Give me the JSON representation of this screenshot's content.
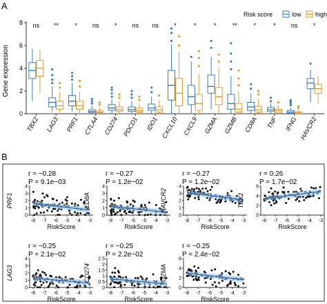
{
  "panel_a": {
    "label": "A",
    "ylabel": "Gene expression",
    "legend": {
      "title": "Risk score",
      "items": [
        {
          "name": "low",
          "color": "#3a7ec2"
        },
        {
          "name": "high",
          "color": "#eb9a2b"
        }
      ]
    },
    "ylim": [
      0,
      8
    ],
    "yticks": [
      "0",
      "2",
      "4",
      "6",
      "8"
    ]
  },
  "panel_b": {
    "label": "B",
    "xlabel": "RiskScore",
    "xticks": [
      "-8",
      "-7",
      "-6",
      "-5",
      "-4",
      "-3"
    ],
    "plots": [
      {
        "gene": "PRF1",
        "r": "r = −0.28",
        "p": "P = 9.1e−03"
      },
      {
        "gene": "CD8A",
        "r": "r = −0.27",
        "p": "P = 1.2e−02"
      },
      {
        "gene": "HAVCR2",
        "r": "r = −0.27",
        "p": "P = 1.2e−02"
      },
      {
        "gene": "TBX2",
        "r": "r = 0.26",
        "p": "P = 1.7e−02"
      },
      {
        "gene": "LAG3",
        "r": "r = −0.25",
        "p": "P = 2.1e−02"
      },
      {
        "gene": "CD274",
        "r": "r = −0.25",
        "p": "P = 2.2e−02"
      },
      {
        "gene": "GZMA",
        "r": "r = −0.25",
        "p": "P = 2.4e−02"
      }
    ]
  },
  "chart_data": [
    {
      "type": "box",
      "ylabel": "Gene expression",
      "ylim": [
        0,
        8
      ],
      "legend": {
        "title": "Risk score",
        "position": "top-right"
      },
      "categories": [
        "TBX2",
        "LAG3",
        "PRF1",
        "CTLA4",
        "CD274",
        "PDCD1",
        "IDO1",
        "CXCL10",
        "CXCL9",
        "GZMA",
        "GZMB",
        "CD8A",
        "TNF",
        "IFNG",
        "HAVCR2"
      ],
      "significance": [
        "ns",
        "**",
        "*",
        "ns",
        "*",
        "ns",
        "ns",
        "*",
        "*",
        "*",
        "**",
        "*",
        "*",
        "ns",
        "*"
      ],
      "series": [
        {
          "name": "low",
          "color": "#3a7ec2",
          "boxes": [
            {
              "min": 1.1,
              "q1": 3.1,
              "median": 3.8,
              "q3": 4.5,
              "max": 5.7,
              "outliers": []
            },
            {
              "min": 0.2,
              "q1": 0.6,
              "median": 1.0,
              "q3": 1.4,
              "max": 2.4,
              "outliers": [
                2.7,
                3.0,
                3.4,
                3.9
              ]
            },
            {
              "min": 0.2,
              "q1": 0.7,
              "median": 1.1,
              "q3": 1.6,
              "max": 2.7,
              "outliers": [
                3.0,
                3.3,
                3.6
              ]
            },
            {
              "min": 0.0,
              "q1": 0.1,
              "median": 0.2,
              "q3": 0.35,
              "max": 0.7,
              "outliers": [
                0.9,
                1.1,
                1.3
              ]
            },
            {
              "min": 0.05,
              "q1": 0.3,
              "median": 0.5,
              "q3": 0.8,
              "max": 1.3,
              "outliers": [
                1.5,
                1.8,
                2.1,
                2.3
              ]
            },
            {
              "min": 0.0,
              "q1": 0.2,
              "median": 0.35,
              "q3": 0.6,
              "max": 1.1,
              "outliers": [
                1.4,
                1.7,
                2.0
              ]
            },
            {
              "min": 0.0,
              "q1": 0.3,
              "median": 0.5,
              "q3": 0.85,
              "max": 1.5,
              "outliers": [
                1.9,
                2.3
              ]
            },
            {
              "min": 0.0,
              "q1": 1.2,
              "median": 2.5,
              "q3": 3.8,
              "max": 6.1,
              "outliers": [
                6.4,
                7.1,
                7.5
              ]
            },
            {
              "min": 0.0,
              "q1": 0.8,
              "median": 1.5,
              "q3": 2.5,
              "max": 4.6,
              "outliers": [
                5.0
              ]
            },
            {
              "min": 0.4,
              "q1": 1.8,
              "median": 2.4,
              "q3": 3.4,
              "max": 5.0,
              "outliers": [
                5.8,
                6.4
              ]
            },
            {
              "min": 0.0,
              "q1": 0.4,
              "median": 0.9,
              "q3": 1.7,
              "max": 3.3,
              "outliers": [
                3.9,
                4.6,
                5.3,
                6.2
              ]
            },
            {
              "min": 0.0,
              "q1": 0.3,
              "median": 0.6,
              "q3": 1.0,
              "max": 1.8,
              "outliers": [
                2.2,
                2.6
              ]
            },
            {
              "min": 0.0,
              "q1": 0.2,
              "median": 0.35,
              "q3": 0.55,
              "max": 0.9,
              "outliers": [
                1.1,
                1.4
              ]
            },
            {
              "min": 0.0,
              "q1": 0.05,
              "median": 0.15,
              "q3": 0.3,
              "max": 0.55,
              "outliers": [
                0.75,
                0.9,
                1.05,
                1.2
              ]
            },
            {
              "min": 1.0,
              "q1": 2.2,
              "median": 2.7,
              "q3": 3.1,
              "max": 3.9,
              "outliers": [
                4.4
              ]
            }
          ]
        },
        {
          "name": "high",
          "color": "#eb9a2b",
          "boxes": [
            {
              "min": 1.8,
              "q1": 3.3,
              "median": 4.0,
              "q3": 4.7,
              "max": 5.6,
              "outliers": []
            },
            {
              "min": 0.1,
              "q1": 0.4,
              "median": 0.7,
              "q3": 1.1,
              "max": 1.9,
              "outliers": [
                2.3,
                2.7
              ]
            },
            {
              "min": 0.1,
              "q1": 0.4,
              "median": 0.7,
              "q3": 1.1,
              "max": 1.9,
              "outliers": [
                2.4,
                2.9
              ]
            },
            {
              "min": 0.0,
              "q1": 0.1,
              "median": 0.15,
              "q3": 0.3,
              "max": 0.55,
              "outliers": [
                0.8,
                1.0
              ]
            },
            {
              "min": 0.0,
              "q1": 0.2,
              "median": 0.35,
              "q3": 0.6,
              "max": 1.1,
              "outliers": [
                1.4,
                1.7
              ]
            },
            {
              "min": 0.0,
              "q1": 0.15,
              "median": 0.3,
              "q3": 0.5,
              "max": 0.9,
              "outliers": [
                1.2,
                1.5
              ]
            },
            {
              "min": 0.0,
              "q1": 0.15,
              "median": 0.35,
              "q3": 0.6,
              "max": 1.2,
              "outliers": [
                1.6
              ]
            },
            {
              "min": 0.0,
              "q1": 0.7,
              "median": 1.8,
              "q3": 3.1,
              "max": 5.5,
              "outliers": [
                6.0,
                6.8
              ]
            },
            {
              "min": 0.0,
              "q1": 0.3,
              "median": 0.9,
              "q3": 1.7,
              "max": 3.5,
              "outliers": [
                4.2,
                4.9,
                5.5
              ]
            },
            {
              "min": 0.0,
              "q1": 0.8,
              "median": 1.5,
              "q3": 2.3,
              "max": 4.1,
              "outliers": [
                4.6,
                5.2
              ]
            },
            {
              "min": 0.0,
              "q1": 0.15,
              "median": 0.4,
              "q3": 0.9,
              "max": 2.0,
              "outliers": [
                2.5,
                3.1,
                3.8
              ]
            },
            {
              "min": 0.0,
              "q1": 0.15,
              "median": 0.35,
              "q3": 0.65,
              "max": 1.3,
              "outliers": [
                1.7,
                2.0
              ]
            },
            {
              "min": 0.0,
              "q1": 0.1,
              "median": 0.25,
              "q3": 0.4,
              "max": 0.75,
              "outliers": [
                1.0
              ]
            },
            {
              "min": 0.0,
              "q1": 0.02,
              "median": 0.08,
              "q3": 0.18,
              "max": 0.35,
              "outliers": [
                0.5,
                0.65
              ]
            },
            {
              "min": 0.9,
              "q1": 1.8,
              "median": 2.2,
              "q3": 2.6,
              "max": 3.3,
              "outliers": []
            }
          ]
        }
      ]
    },
    {
      "type": "scatter",
      "xlabel": "RiskScore",
      "xlim": [
        -8.3,
        -2.7
      ],
      "panels": [
        {
          "gene": "PRF1",
          "r": -0.28,
          "p": "9.1e-03",
          "ylim": [
            0,
            4
          ],
          "yticks": [
            0,
            1,
            2,
            3,
            4
          ],
          "fit": [
            [
              -8,
              1.6
            ],
            [
              -3,
              0.7
            ]
          ],
          "seed": 11,
          "ymean": 1.2,
          "yspread": 0.9
        },
        {
          "gene": "CD8A",
          "r": -0.27,
          "p": "1.2e-02",
          "ylim": [
            0,
            4
          ],
          "yticks": [
            0,
            1,
            2,
            3,
            4
          ],
          "fit": [
            [
              -8,
              1.2
            ],
            [
              -3,
              0.4
            ]
          ],
          "seed": 23,
          "ymean": 0.9,
          "yspread": 0.8
        },
        {
          "gene": "HAVCR2",
          "r": -0.27,
          "p": "1.2e-02",
          "ylim": [
            0,
            4
          ],
          "yticks": [
            0,
            1,
            2,
            3,
            4
          ],
          "fit": [
            [
              -8,
              3.1
            ],
            [
              -3,
              2.1
            ]
          ],
          "seed": 37,
          "ymean": 2.7,
          "yspread": 0.55
        },
        {
          "gene": "TBX2",
          "r": 0.26,
          "p": "1.7e-02",
          "ylim": [
            0,
            6
          ],
          "yticks": [
            0,
            2,
            4,
            6
          ],
          "fit": [
            [
              -8,
              3.4
            ],
            [
              -3,
              4.9
            ]
          ],
          "seed": 41,
          "ymean": 3.9,
          "yspread": 0.9
        },
        {
          "gene": "LAG3",
          "r": -0.25,
          "p": "2.1e-02",
          "ylim": [
            0,
            4
          ],
          "yticks": [
            0,
            1,
            2,
            3,
            4
          ],
          "fit": [
            [
              -8,
              1.3
            ],
            [
              -3,
              0.6
            ]
          ],
          "seed": 53,
          "ymean": 1.0,
          "yspread": 0.8
        },
        {
          "gene": "CD274",
          "r": -0.25,
          "p": "2.2e-02",
          "ylim": [
            0,
            2.5
          ],
          "yticks": [
            0,
            0.5,
            1,
            1.5,
            2,
            2.5
          ],
          "fit": [
            [
              -8,
              0.75
            ],
            [
              -3,
              0.3
            ]
          ],
          "seed": 67,
          "ymean": 0.55,
          "yspread": 0.45
        },
        {
          "gene": "GZMA",
          "r": -0.25,
          "p": "2.4e-02",
          "ylim": [
            0,
            6
          ],
          "yticks": [
            0,
            2,
            4,
            6
          ],
          "fit": [
            [
              -8,
              3.0
            ],
            [
              -3,
              1.6
            ]
          ],
          "seed": 79,
          "ymean": 2.4,
          "yspread": 1.0
        }
      ]
    }
  ]
}
